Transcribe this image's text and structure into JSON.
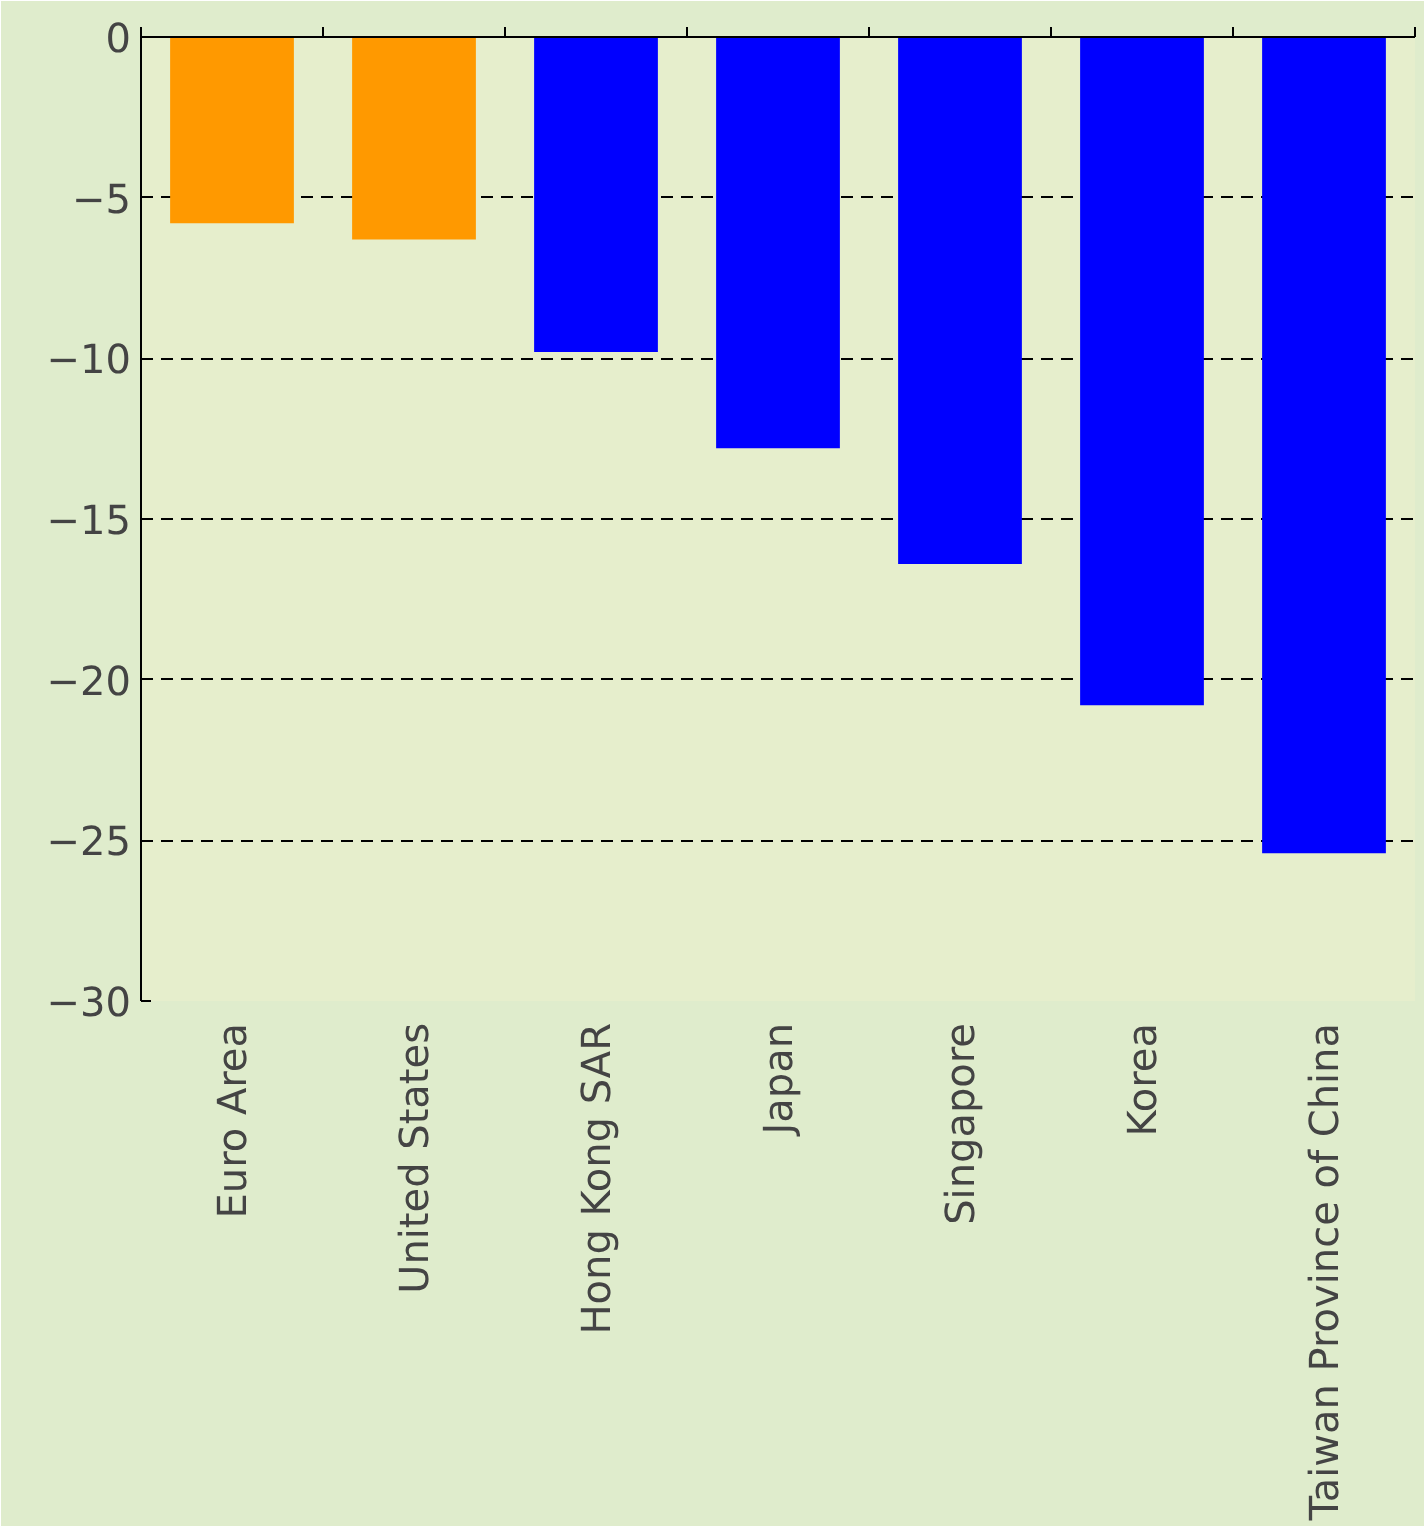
{
  "chart_data": {
    "type": "bar",
    "categories": [
      "Euro Area",
      "United States",
      "Hong Kong SAR",
      "Japan",
      "Singapore",
      "Korea",
      "Taiwan Province of China"
    ],
    "values": [
      -5.8,
      -6.3,
      -9.8,
      -12.8,
      -16.4,
      -20.8,
      -25.4
    ],
    "colors": [
      "#ff9900",
      "#ff9900",
      "#0000ff",
      "#0000ff",
      "#0000ff",
      "#0000ff",
      "#0000ff"
    ],
    "ylim": [
      -30,
      0
    ],
    "yticks": [
      -30,
      -25,
      -20,
      -15,
      -10,
      -5,
      0
    ],
    "grid": "y"
  }
}
